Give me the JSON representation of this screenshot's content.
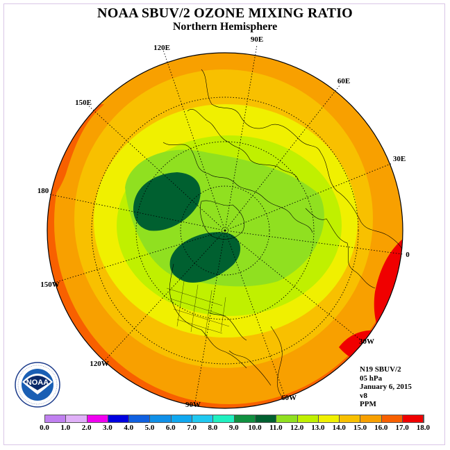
{
  "header": {
    "title": "NOAA SBUV/2 OZONE MIXING RATIO",
    "subtitle": "Northern Hemisphere"
  },
  "map": {
    "projection": "polar stereographic",
    "longitude_labels": [
      "90E",
      "60E",
      "30E",
      "0",
      "30W",
      "60W",
      "90W",
      "120W",
      "150W",
      "180",
      "150E",
      "120E"
    ]
  },
  "info": {
    "satellite": "N19 SBUV/2",
    "pressure": "05 hPa",
    "date": "January 6, 2015",
    "version": "v8",
    "units": "PPM"
  },
  "colorbar": {
    "ticks": [
      "0.0",
      "1.0",
      "2.0",
      "3.0",
      "4.0",
      "5.0",
      "6.0",
      "7.0",
      "8.0",
      "9.0",
      "10.0",
      "11.0",
      "12.0",
      "13.0",
      "14.0",
      "15.0",
      "16.0",
      "17.0",
      "18.0"
    ],
    "colors": [
      "#c080f0",
      "#e0b0f8",
      "#f000f0",
      "#0000e0",
      "#1060e0",
      "#1090e8",
      "#10a8f0",
      "#20c8f0",
      "#20f0c0",
      "#109040",
      "#006030",
      "#90e020",
      "#c0f000",
      "#f0f000",
      "#f8c000",
      "#f8a000",
      "#f86000",
      "#f00000",
      "#a06040"
    ]
  },
  "logo": {
    "text": "NOAA"
  }
}
